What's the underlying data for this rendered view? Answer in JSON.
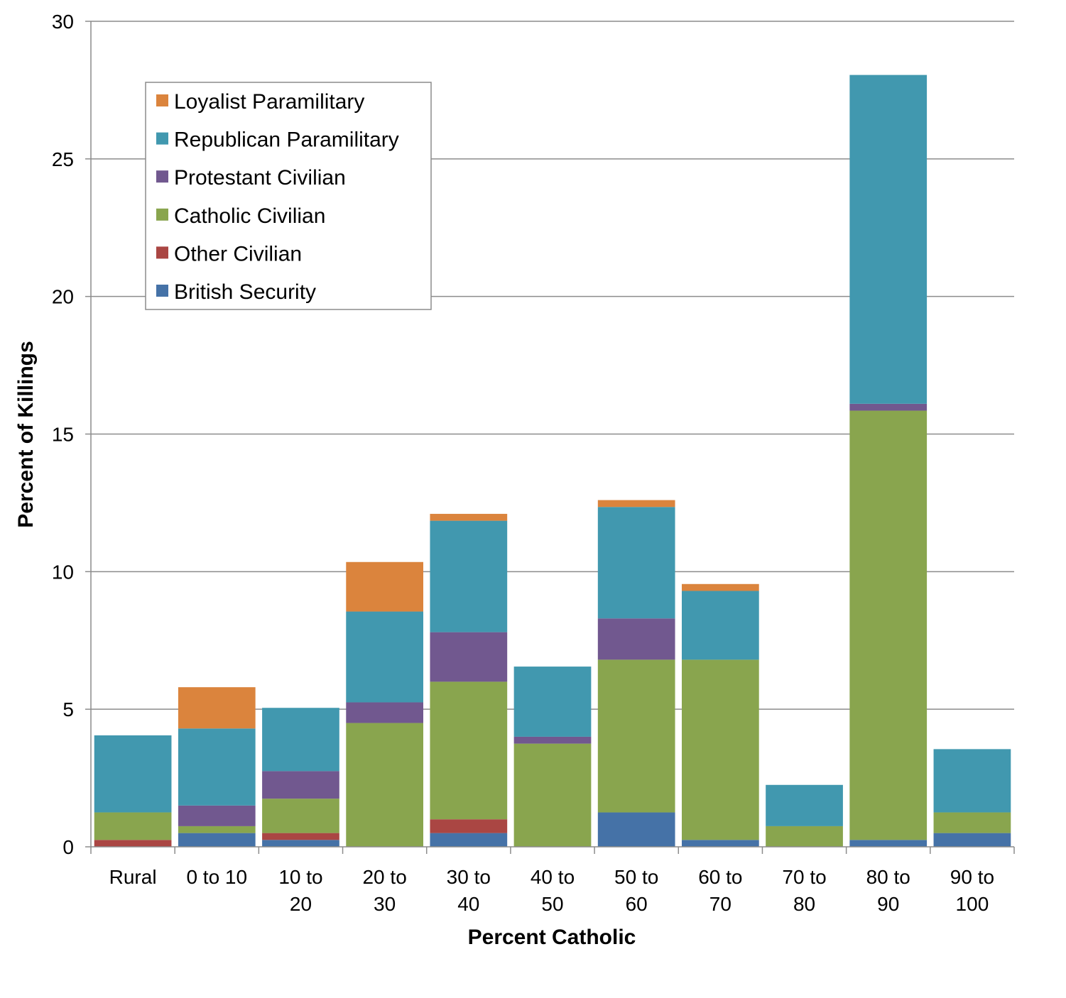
{
  "chart_data": {
    "type": "bar",
    "stacked": true,
    "xlabel": "Percent Catholic",
    "ylabel": "Percent of Killings",
    "ylim": [
      0,
      30
    ],
    "yticks": [
      0,
      5,
      10,
      15,
      20,
      25,
      30
    ],
    "grid": "horizontal",
    "legend_position": "top-left",
    "categories": [
      [
        "Rural"
      ],
      [
        "0 to 10"
      ],
      [
        "10 to",
        "20"
      ],
      [
        "20 to",
        "30"
      ],
      [
        "30 to",
        "40"
      ],
      [
        "40 to",
        "50"
      ],
      [
        "50 to",
        "60"
      ],
      [
        "60 to",
        "70"
      ],
      [
        "70 to",
        "80"
      ],
      [
        "80 to",
        "90"
      ],
      [
        "90 to",
        "100"
      ]
    ],
    "series": [
      {
        "name": "British Security",
        "color": "#4572A7",
        "values": [
          0,
          0.5,
          0.25,
          0,
          0.5,
          0,
          1.25,
          0.25,
          0,
          0.25,
          0.5
        ]
      },
      {
        "name": "Other Civilian",
        "color": "#AA4643",
        "values": [
          0.25,
          0,
          0.25,
          0,
          0.5,
          0,
          0,
          0,
          0,
          0,
          0
        ]
      },
      {
        "name": "Catholic Civilian",
        "color": "#89A54E",
        "values": [
          1.0,
          0.25,
          1.25,
          4.5,
          5.0,
          3.75,
          5.55,
          6.55,
          0.75,
          15.6,
          0.75
        ]
      },
      {
        "name": "Protestant Civilian",
        "color": "#71588F",
        "values": [
          0,
          0.75,
          1.0,
          0.75,
          1.8,
          0.25,
          1.5,
          0,
          0,
          0.25,
          0
        ]
      },
      {
        "name": "Republican Paramilitary",
        "color": "#4198AF",
        "values": [
          2.8,
          2.8,
          2.3,
          3.3,
          4.05,
          2.55,
          4.05,
          2.5,
          1.5,
          11.95,
          2.3
        ]
      },
      {
        "name": "Loyalist Paramilitary",
        "color": "#DB843D",
        "values": [
          0,
          1.5,
          0,
          1.8,
          0.25,
          0,
          0.25,
          0.25,
          0,
          0,
          0
        ]
      }
    ]
  }
}
